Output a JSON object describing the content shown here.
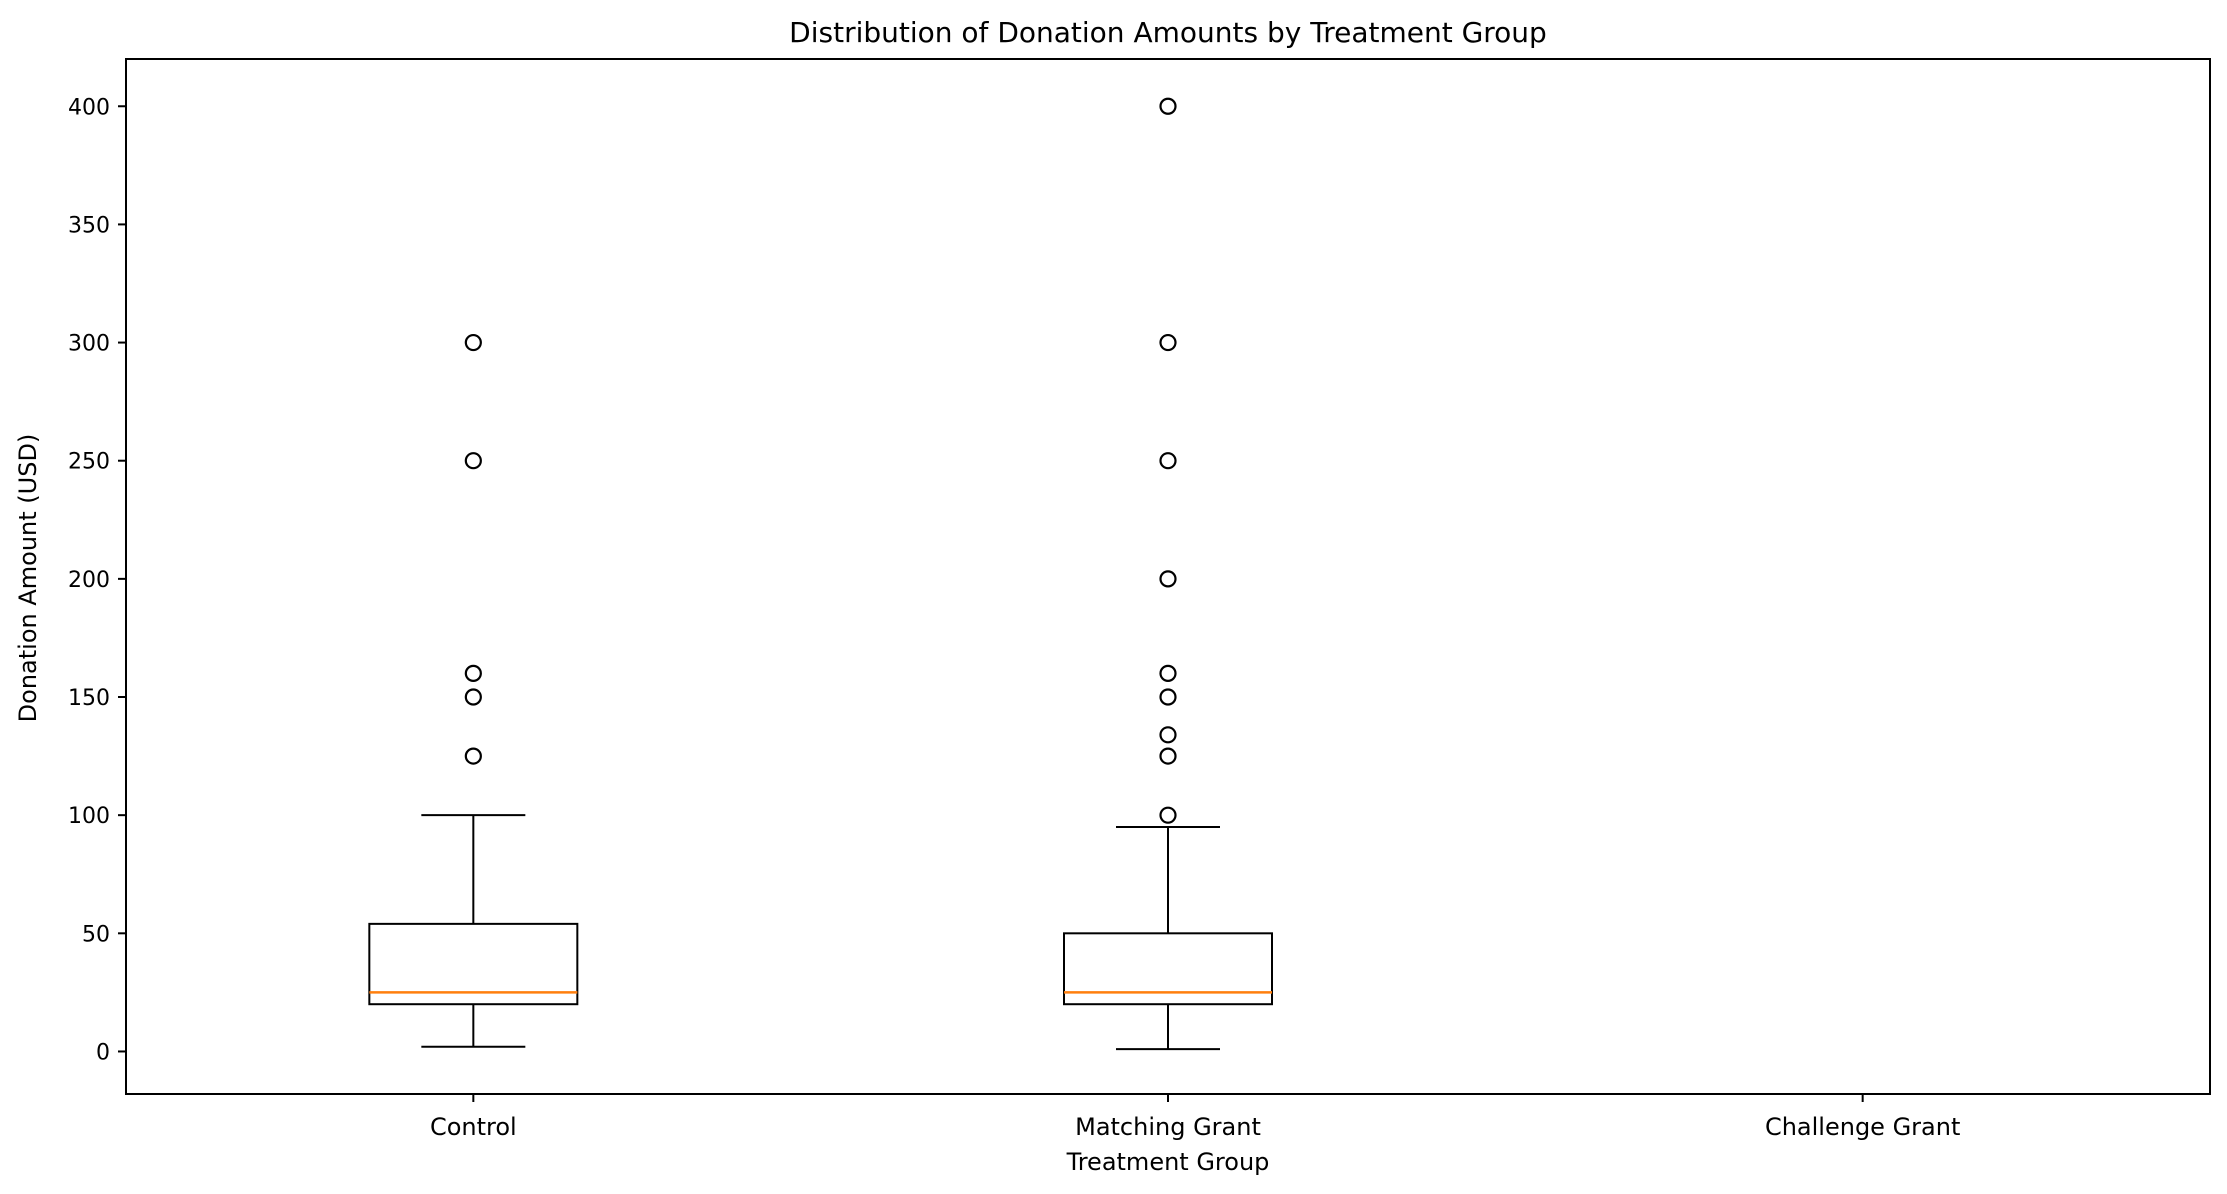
{
  "chart_data": {
    "type": "box",
    "title": "Distribution of Donation Amounts by Treatment Group",
    "xlabel": "Treatment Group",
    "ylabel": "Donation Amount (USD)",
    "categories": [
      "Control",
      "Matching Grant",
      "Challenge Grant"
    ],
    "ylim": [
      -18,
      420
    ],
    "yticks": [
      0,
      50,
      100,
      150,
      200,
      250,
      300,
      350,
      400
    ],
    "grid": false,
    "boxes": [
      {
        "category": "Control",
        "whisker_low": 2,
        "q1": 20,
        "median": 25,
        "q3": 54,
        "whisker_high": 100,
        "outliers": [
          125,
          150,
          160,
          250,
          300
        ]
      },
      {
        "category": "Matching Grant",
        "whisker_low": 1,
        "q1": 20,
        "median": 25,
        "q3": 50,
        "whisker_high": 95,
        "outliers": [
          100,
          125,
          134,
          150,
          160,
          200,
          250,
          300,
          400
        ]
      },
      {
        "category": "Challenge Grant",
        "whisker_low": null,
        "q1": null,
        "median": null,
        "q3": null,
        "whisker_high": null,
        "outliers": []
      }
    ],
    "colors": {
      "box": "#000000",
      "median": "#ff7f0e",
      "outlier": "#000000",
      "background": "#ffffff"
    }
  }
}
